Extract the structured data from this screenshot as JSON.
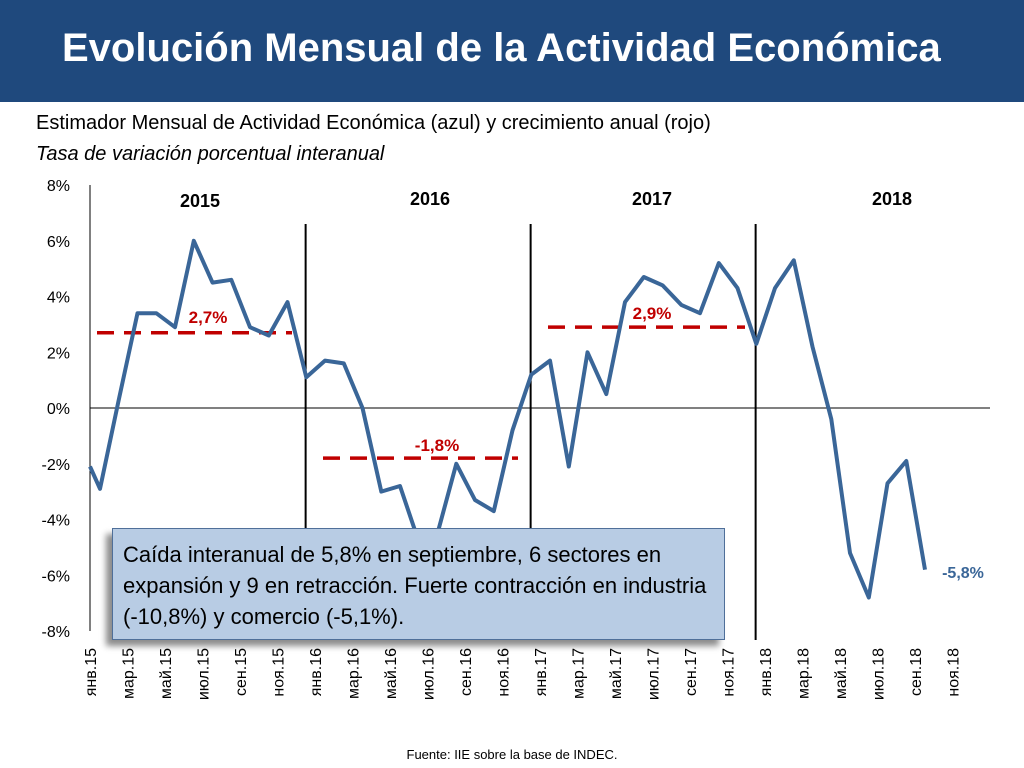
{
  "header": {
    "title": "Evolución Mensual de la Actividad Económica"
  },
  "subtitle": "Estimador Mensual de Actividad Económica (azul) y crecimiento anual (rojo)",
  "subtitle2": "Tasa de variación porcentual interanual",
  "callout_text": "Caída interanual de 5,8% en septiembre, 6 sectores en expansión y 9 en retracción. Fuerte contracción en industria (-10,8%) y comercio (-5,1%).",
  "source": "Fuente: IIE sobre la base de INDEC.",
  "colors": {
    "header": "#1f497d",
    "series": "#3a6698",
    "annual": "#c00000",
    "callout": "#b8cce4"
  },
  "chart_data": {
    "type": "line",
    "ylim": [
      -8,
      8
    ],
    "y_ticks": [
      8,
      6,
      4,
      2,
      0,
      -2,
      -4,
      -6,
      -8
    ],
    "y_tick_labels": [
      "8%",
      "6%",
      "4%",
      "2%",
      "0%",
      "-2%",
      "-4%",
      "-6%",
      "-8%"
    ],
    "x_tick_labels": [
      "янв.15",
      "мар.15",
      "май.15",
      "июл.15",
      "сен.15",
      "ноя.15",
      "янв.16",
      "мар.16",
      "май.16",
      "июл.16",
      "сен.16",
      "ноя.16",
      "янв.17",
      "мар.17",
      "май.17",
      "июл.17",
      "сен.17",
      "ноя.17",
      "янв.18",
      "мар.18",
      "май.18",
      "июл.18",
      "сен.18",
      "ноя.18"
    ],
    "x_tick_months": [
      0,
      2,
      4,
      6,
      8,
      10,
      12,
      14,
      16,
      18,
      20,
      22,
      24,
      26,
      28,
      30,
      32,
      34,
      36,
      38,
      40,
      42,
      44,
      46
    ],
    "year_labels": [
      {
        "label": "2015",
        "month": 5.5
      },
      {
        "label": "2016",
        "month": 17.5
      },
      {
        "label": "2017",
        "month": 29.5
      },
      {
        "label": "2018",
        "month": 41.5
      }
    ],
    "year_dividers": [
      11.5,
      23.5,
      35.5
    ],
    "series": [
      {
        "values": [
          -2.9,
          0.3,
          3.4,
          3.4,
          2.9,
          6.0,
          4.5,
          4.6,
          2.9,
          2.6,
          3.8,
          1.1,
          1.7,
          1.6,
          0.0,
          -3.0,
          -2.8,
          -4.8,
          -4.5,
          -2.0,
          -3.3,
          -3.7,
          -0.8,
          1.2,
          1.7,
          -2.1,
          2.0,
          0.5,
          3.8,
          4.7,
          4.4,
          3.7,
          3.4,
          5.2,
          4.3,
          2.3,
          4.3,
          5.3,
          2.2,
          -0.4,
          -5.2,
          -6.8,
          -2.7,
          -1.9,
          -5.8
        ]
      }
    ],
    "annual_averages": [
      {
        "year": "2015",
        "value": 2.7,
        "label": "2,7%"
      },
      {
        "year": "2016",
        "value": -1.8,
        "label": "-1,8%"
      },
      {
        "year": "2017",
        "value": 2.9,
        "label": "2,9%"
      }
    ],
    "last_value_label": "-5,8%"
  }
}
